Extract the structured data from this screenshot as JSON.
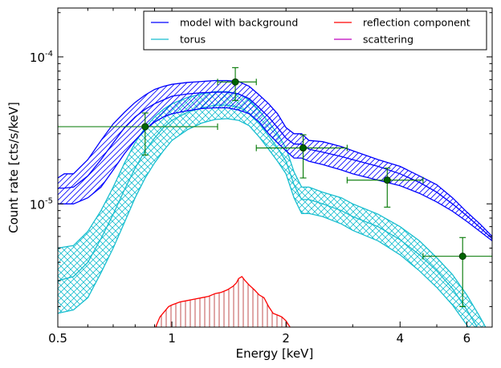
{
  "chart_data": {
    "type": "line",
    "xlabel": "Energy [keV]",
    "ylabel": "Count rate [cts/s/keV]",
    "xscale": "log",
    "yscale": "log",
    "xlim": [
      0.5,
      7.0
    ],
    "ylim": [
      1.45e-06,
      0.000215
    ],
    "xticks": [
      {
        "value": 0.5,
        "label": "0.5"
      },
      {
        "value": 1,
        "label": "1"
      },
      {
        "value": 2,
        "label": "2"
      },
      {
        "value": 4,
        "label": "4"
      },
      {
        "value": 6,
        "label": "6"
      }
    ],
    "yticks": [
      {
        "value": 1e-05,
        "mantissa": "10",
        "exponent": "-5"
      },
      {
        "value": 0.0001,
        "mantissa": "10",
        "exponent": "-4"
      }
    ],
    "legend": {
      "placement": "top-right",
      "columns": 2,
      "entries": [
        {
          "label": "model with background",
          "color": "#0000ff"
        },
        {
          "label": "reflection component",
          "color": "#ff0000"
        },
        {
          "label": "torus",
          "color": "#17becf"
        },
        {
          "label": "scattering",
          "color": "#bf00bf"
        }
      ]
    },
    "series": [
      {
        "name": "model with background",
        "color": "#0000ff",
        "style": "hatched-band",
        "x": [
          0.5,
          0.52,
          0.55,
          0.6,
          0.65,
          0.7,
          0.75,
          0.8,
          0.85,
          0.9,
          0.95,
          1.0,
          1.1,
          1.2,
          1.3,
          1.4,
          1.5,
          1.6,
          1.7,
          1.8,
          1.9,
          2.0,
          2.1,
          2.2,
          2.3,
          2.5,
          2.8,
          3.0,
          3.5,
          4.0,
          4.5,
          5.0,
          5.5,
          6.0,
          6.5,
          7.0
        ],
        "upper": [
          1.5e-05,
          1.6e-05,
          1.6e-05,
          2e-05,
          2.7e-05,
          3.5e-05,
          4.2e-05,
          4.9e-05,
          5.5e-05,
          6e-05,
          6.3e-05,
          6.5e-05,
          6.7e-05,
          6.8e-05,
          6.9e-05,
          6.9e-05,
          6.8e-05,
          6.3e-05,
          5.5e-05,
          4.8e-05,
          4.1e-05,
          3.3e-05,
          3e-05,
          3e-05,
          2.7e-05,
          2.65e-05,
          2.45e-05,
          2.3e-05,
          2e-05,
          1.8e-05,
          1.55e-05,
          1.35e-05,
          1.1e-05,
          8.8e-06,
          7.3e-06,
          6e-06
        ],
        "mid": [
          1.28e-05,
          1.28e-05,
          1.3e-05,
          1.55e-05,
          2e-05,
          2.6e-05,
          3.3e-05,
          3.9e-05,
          4.4e-05,
          4.8e-05,
          5.1e-05,
          5.4e-05,
          5.6e-05,
          5.7e-05,
          5.75e-05,
          5.75e-05,
          5.6e-05,
          5.2e-05,
          4.5e-05,
          3.9e-05,
          3.3e-05,
          2.8e-05,
          2.55e-05,
          2.55e-05,
          2.35e-05,
          2.25e-05,
          2.1e-05,
          2e-05,
          1.8e-05,
          1.6e-05,
          1.4e-05,
          1.2e-05,
          1e-05,
          8.3e-06,
          6.9e-06,
          5.8e-06
        ],
        "lower": [
          1e-05,
          1e-05,
          1e-05,
          1.1e-05,
          1.3e-05,
          1.7e-05,
          2.2e-05,
          2.7e-05,
          3.2e-05,
          3.6e-05,
          3.9e-05,
          4.1e-05,
          4.3e-05,
          4.45e-05,
          4.5e-05,
          4.5e-05,
          4.35e-05,
          4.1e-05,
          3.6e-05,
          3e-05,
          2.6e-05,
          2.3e-05,
          2.05e-05,
          2.05e-05,
          1.95e-05,
          1.85e-05,
          1.7e-05,
          1.6e-05,
          1.45e-05,
          1.33e-05,
          1.18e-05,
          1.03e-05,
          8.9e-06,
          7.6e-06,
          6.5e-06,
          5.6e-06
        ]
      },
      {
        "name": "torus",
        "color": "#17becf",
        "style": "crosshatched-band",
        "x": [
          0.5,
          0.55,
          0.6,
          0.65,
          0.7,
          0.75,
          0.8,
          0.85,
          0.9,
          0.95,
          1.0,
          1.1,
          1.2,
          1.3,
          1.4,
          1.5,
          1.6,
          1.7,
          1.8,
          1.9,
          2.0,
          2.1,
          2.2,
          2.3,
          2.5,
          2.8,
          3.0,
          3.5,
          4.0,
          4.5,
          5.0,
          5.5,
          6.0,
          6.5,
          7.0
        ],
        "upper": [
          5e-06,
          5.2e-06,
          6.5e-06,
          9e-06,
          1.3e-05,
          1.9e-05,
          2.6e-05,
          3.3e-05,
          3.9e-05,
          4.4e-05,
          4.8e-05,
          5.3e-05,
          5.6e-05,
          5.8e-05,
          5.8e-05,
          5.6e-05,
          5.1e-05,
          4.3e-05,
          3.6e-05,
          3e-05,
          2.4e-05,
          1.65e-05,
          1.3e-05,
          1.3e-05,
          1.2e-05,
          1.1e-05,
          1e-05,
          8.5e-06,
          7e-06,
          5.6e-06,
          4.3e-06,
          3.3e-06,
          2.4e-06,
          1.7e-06,
          1.2e-06
        ],
        "mid": [
          3e-06,
          3.2e-06,
          4e-06,
          5.8e-06,
          8.5e-06,
          1.25e-05,
          1.75e-05,
          2.3e-05,
          2.8e-05,
          3.3e-05,
          3.7e-05,
          4.2e-05,
          4.5e-05,
          4.7e-05,
          4.7e-05,
          4.55e-05,
          4.15e-05,
          3.5e-05,
          2.9e-05,
          2.4e-05,
          1.95e-05,
          1.35e-05,
          1.07e-05,
          1.07e-05,
          1e-05,
          9e-06,
          8.2e-06,
          7e-06,
          5.7e-06,
          4.5e-06,
          3.5e-06,
          2.65e-06,
          1.9e-06,
          1.35e-06,
          9.5e-07
        ],
        "lower": [
          1.8e-06,
          1.9e-06,
          2.3e-06,
          3.4e-06,
          5e-06,
          7.5e-06,
          1.1e-05,
          1.5e-05,
          1.9e-05,
          2.3e-05,
          2.7e-05,
          3.2e-05,
          3.55e-05,
          3.75e-05,
          3.8e-05,
          3.7e-05,
          3.4e-05,
          2.85e-05,
          2.35e-05,
          1.95e-05,
          1.6e-05,
          1.1e-05,
          8.6e-06,
          8.6e-06,
          8.2e-06,
          7.3e-06,
          6.6e-06,
          5.6e-06,
          4.5e-06,
          3.5e-06,
          2.7e-06,
          2.05e-06,
          1.5e-06,
          1.05e-06,
          7.5e-07
        ]
      },
      {
        "name": "reflection component",
        "color": "#ff0000",
        "style": "line-with-fill",
        "x": [
          0.89,
          0.93,
          0.98,
          1.0,
          1.05,
          1.1,
          1.15,
          1.2,
          1.25,
          1.3,
          1.35,
          1.4,
          1.45,
          1.48,
          1.5,
          1.53,
          1.56,
          1.6,
          1.65,
          1.7,
          1.75,
          1.8,
          1.85,
          1.9,
          1.95,
          2.0,
          2.05,
          2.1
        ],
        "y": [
          1.3e-06,
          1.7e-06,
          2e-06,
          2.05e-06,
          2.15e-06,
          2.2e-06,
          2.25e-06,
          2.3e-06,
          2.35e-06,
          2.45e-06,
          2.5e-06,
          2.6e-06,
          2.75e-06,
          2.9e-06,
          3.1e-06,
          3.2e-06,
          3e-06,
          2.8e-06,
          2.6e-06,
          2.4e-06,
          2.3e-06,
          2e-06,
          1.8e-06,
          1.75e-06,
          1.7e-06,
          1.6e-06,
          1.45e-06,
          1.3e-06
        ]
      },
      {
        "name": "data",
        "color": "#007700",
        "style": "errorbar-points",
        "points": [
          {
            "x": 0.85,
            "y": 3.35e-05,
            "xlo": 0.5,
            "xhi": 1.32,
            "ylo": 2.15e-05,
            "yhi": 4.15e-05
          },
          {
            "x": 1.47,
            "y": 6.75e-05,
            "xlo": 1.32,
            "xhi": 1.67,
            "ylo": 5.05e-05,
            "yhi": 8.45e-05
          },
          {
            "x": 2.22,
            "y": 2.4e-05,
            "xlo": 1.67,
            "xhi": 2.9,
            "ylo": 1.5e-05,
            "yhi": 2.95e-05
          },
          {
            "x": 3.7,
            "y": 1.45e-05,
            "xlo": 2.9,
            "xhi": 4.6,
            "ylo": 9.5e-06,
            "yhi": 1.75e-05
          },
          {
            "x": 5.85,
            "y": 4.4e-06,
            "xlo": 4.6,
            "xhi": 7.0,
            "ylo": 2e-06,
            "yhi": 5.9e-06
          }
        ]
      }
    ]
  }
}
